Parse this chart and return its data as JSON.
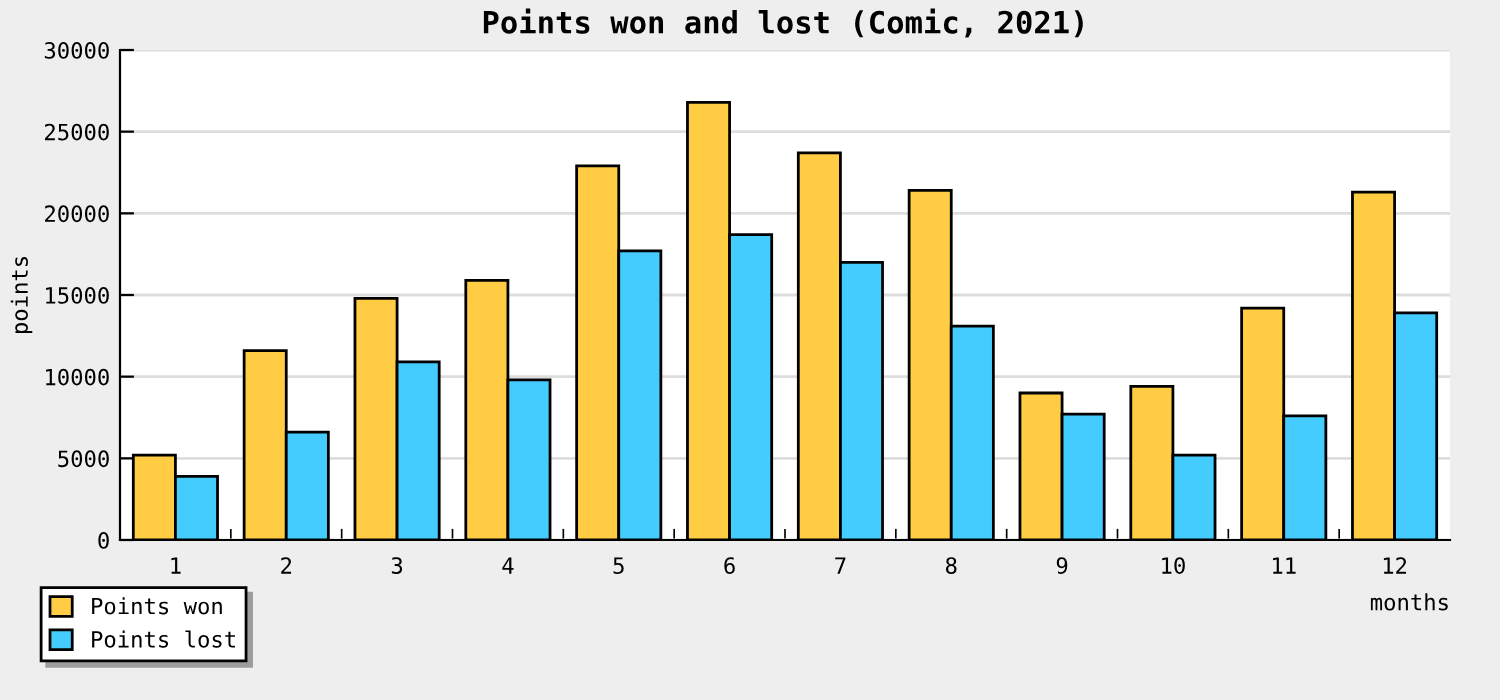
{
  "chart_data": {
    "type": "bar",
    "title": "Points won and lost (Comic, 2021)",
    "xlabel": "months",
    "ylabel": "points",
    "categories": [
      "1",
      "2",
      "3",
      "4",
      "5",
      "6",
      "7",
      "8",
      "9",
      "10",
      "11",
      "12"
    ],
    "series": [
      {
        "name": "Points won",
        "color": "#ffcc44",
        "values": [
          5200,
          11600,
          14800,
          15900,
          22900,
          26800,
          23700,
          21400,
          9000,
          9400,
          14200,
          21300
        ]
      },
      {
        "name": "Points lost",
        "color": "#44ccff",
        "values": [
          3900,
          6600,
          10900,
          9800,
          17700,
          18700,
          17000,
          13100,
          7700,
          5200,
          7600,
          13900
        ]
      }
    ],
    "ylim": [
      0,
      30000
    ],
    "yticks": [
      0,
      5000,
      10000,
      15000,
      20000,
      25000,
      30000
    ],
    "grid": "y",
    "legend": "bottom left"
  }
}
